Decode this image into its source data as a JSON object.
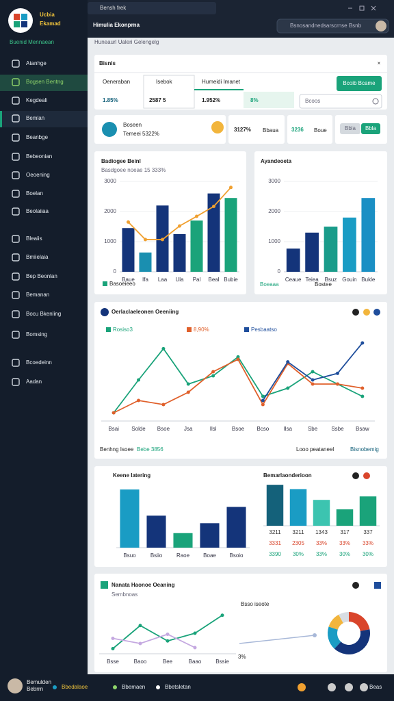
{
  "sidebar": {
    "brand": [
      "Ucbia",
      "Ekamad"
    ],
    "section": "Buenid Mennaean",
    "menu": [
      "Atanhge",
      "Bogsen Bentng",
      "Kegdeali",
      "Bemlan",
      "Beanbge",
      "Bebeonian",
      "Oeoening",
      "Boelan",
      "Beolaiiaa",
      "Bleaiis",
      "Bmiielaia",
      "Bep Beonlan",
      "Bemanan",
      "Bocu Bkenling",
      "Bomsing",
      "Bcoedeinn",
      "Aadan"
    ]
  },
  "footer": {
    "user": [
      "Bemulden",
      "Bebrrn"
    ],
    "status": [
      "Bbedalaoe",
      "Bbemaen",
      "Bbetsletan"
    ],
    "end": "Beas"
  },
  "topbar": {
    "tab": "Bensh frek",
    "title": "Himulia Ekonprna",
    "search": "Bsnosandnedsarscrnse Bsnb"
  },
  "breadcrumb": "Huneaurl Ualeri Gelengelg",
  "kpi": {
    "title": "Bisnis",
    "tabs": [
      {
        "label": "Oeneraban",
        "value": "1.85%"
      },
      {
        "label": "Isebok",
        "value": "2587 5"
      },
      {
        "label": "Humeidi Imanet",
        "value": "1.952%"
      }
    ],
    "extra": "8%",
    "button": "Bcoib Bcame",
    "input": "Bcoos",
    "card": {
      "title": "Boseen",
      "text": "Temeei 5322%"
    },
    "stats": [
      {
        "value": "3127%",
        "label": "Bbaua"
      },
      {
        "value": "3236",
        "label": "Boue"
      }
    ],
    "toggle": [
      "Bbla",
      "Bbla"
    ]
  },
  "chart_data": [
    {
      "type": "bar",
      "title": "Badiogee Beinl",
      "subtitle": "Basdgoee noeae 15 333%",
      "categories": [
        "Baue",
        "Ifa",
        "Laa",
        "Ula",
        "Pal",
        "Beal",
        "Bubie"
      ],
      "series": [
        {
          "name": "Basoeieeo",
          "type": "bar",
          "colors": [
            "#14347a",
            "#1a8fb0",
            "#14347a",
            "#14347a",
            "#1aa37a",
            "#14347a",
            "#1aa37a"
          ],
          "values": [
            1450,
            640,
            2200,
            1250,
            1700,
            2600,
            2450
          ]
        },
        {
          "type": "line",
          "color": "#f0a030",
          "values": [
            1650,
            1070,
            1070,
            1520,
            1840,
            2170,
            2800
          ]
        }
      ],
      "ylim": [
        0,
        3000
      ],
      "yticks": [
        0,
        1000,
        2000,
        3000
      ]
    },
    {
      "type": "bar",
      "title": "Ayandeoeta",
      "categories": [
        "Ceaue",
        "Teiea",
        "Bsuz",
        "Gouin",
        "Bukle"
      ],
      "values": [
        770,
        1300,
        1500,
        1800,
        2450
      ],
      "colors": [
        "#14347a",
        "#14347a",
        "#1a9c8a",
        "#1a9cc4",
        "#1a8fc4"
      ],
      "ylim": [
        0,
        3000
      ],
      "yticks": [
        0,
        1000,
        2000,
        3000
      ],
      "notes": [
        "Boeaaa",
        "Bostee"
      ]
    },
    {
      "type": "line",
      "title": "Oerlaclaeleonen Oeeniing",
      "categories": [
        "Bsai",
        "Solde",
        "Bsoe",
        "Jsa",
        "Ilsl",
        "Bsoe",
        "Bcso",
        "Ilsa",
        "Sbe",
        "Ssbe",
        "Bsaw"
      ],
      "series": [
        {
          "name": "Rosiso3",
          "color": "#1aa37a",
          "values": [
            10,
            50,
            88,
            45,
            55,
            78,
            30,
            40,
            60,
            45,
            30
          ]
        },
        {
          "name": "8,90%",
          "color": "#e0602b",
          "values": [
            10,
            25,
            20,
            35,
            60,
            75,
            20,
            70,
            45,
            45,
            40
          ]
        },
        {
          "name": "Pesbaatso",
          "color": "#1f4e9c",
          "values": [
            null,
            null,
            null,
            null,
            null,
            null,
            25,
            72,
            50,
            58,
            95
          ]
        }
      ],
      "ylim": [
        0,
        100
      ],
      "notes": [
        "Benhng Isoee",
        "Bebe 3856",
        "Looo peataneel",
        "Bisnobemig"
      ]
    },
    {
      "type": "bar",
      "title": "Keene Iatering",
      "categories": [
        "Bsuo",
        "Bsiio",
        "Raoe",
        "Boae",
        "Bsoio"
      ],
      "values": [
        100,
        55,
        25,
        42,
        70
      ],
      "colors": [
        "#1a9cc4",
        "#14347a",
        "#1aa37a",
        "#14347a",
        "#14347a"
      ],
      "ylim": [
        0,
        100
      ]
    },
    {
      "type": "bar",
      "title": "Bemarlaonderioon",
      "values": [
        95,
        85,
        60,
        38,
        68
      ],
      "colors": [
        "#14617a",
        "#1a9cc4",
        "#3cc4b0",
        "#1aa37a",
        "#1aa37a"
      ],
      "ylim": [
        0,
        100
      ],
      "table": [
        [
          "3211",
          "3211",
          "1343",
          "317",
          "337"
        ],
        [
          "3331",
          "2305",
          "33%",
          "33%",
          "33%"
        ],
        [
          "3390",
          "30%",
          "33%",
          "30%",
          "30%"
        ]
      ]
    },
    {
      "type": "line",
      "title": "Nanata Haonoe Oeaning",
      "subtitle": "Sembnoas",
      "categories": [
        "Bsse",
        "Baoo",
        "Bee",
        "Baao",
        "Bssie"
      ],
      "series": [
        {
          "color": "#1aa37a",
          "values": [
            10,
            55,
            25,
            40,
            75
          ]
        },
        {
          "color": "#c4a8e0",
          "values": [
            30,
            20,
            38,
            12,
            null
          ]
        }
      ],
      "ylim": [
        0,
        100
      ],
      "notes": [
        "Bsso iseote",
        "3%"
      ]
    },
    {
      "type": "pie",
      "values": [
        22,
        40,
        18,
        12,
        8
      ],
      "colors": [
        "#d9452b",
        "#14347a",
        "#1a9cc4",
        "#f2b53c",
        "#d8dde3"
      ]
    }
  ]
}
